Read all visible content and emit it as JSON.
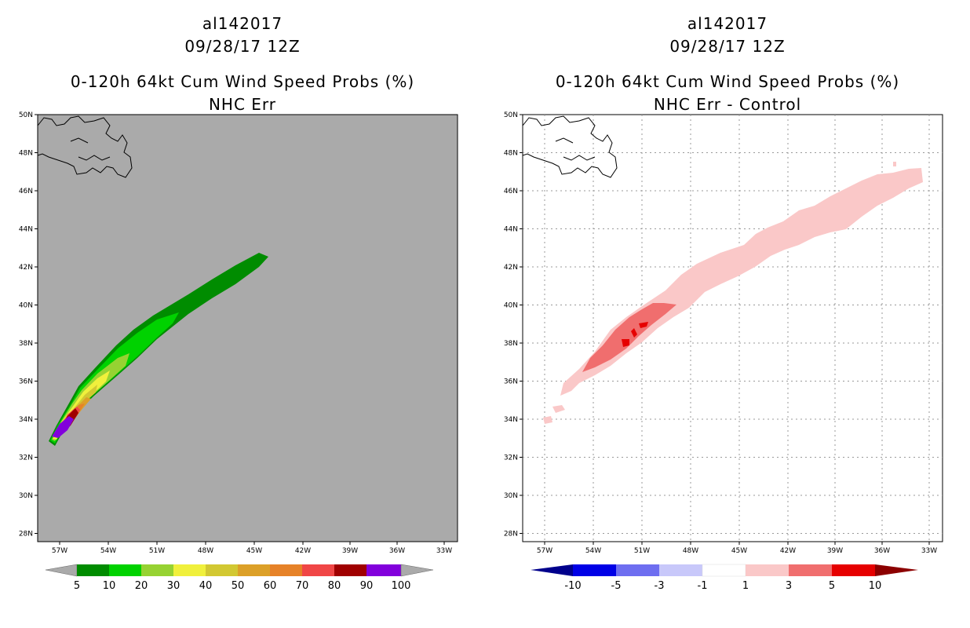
{
  "panels": [
    {
      "id": "left",
      "title_lines": [
        "al142017",
        "09/28/17 12Z",
        "0-120h 64kt Cum Wind Speed Probs (%)",
        "NHC Err"
      ],
      "lat_labels": [
        "50N",
        "48N",
        "46N",
        "44N",
        "42N",
        "40N",
        "38N",
        "36N",
        "34N",
        "32N",
        "30N",
        "28N"
      ],
      "lon_labels": [
        "57W",
        "54W",
        "51W",
        "48W",
        "45W",
        "42W",
        "39W",
        "36W",
        "33W"
      ],
      "gridlines": false,
      "colorbar": {
        "labels": [
          "5",
          "10",
          "20",
          "30",
          "40",
          "50",
          "60",
          "70",
          "80",
          "90",
          "100"
        ],
        "colors": [
          "#008c00",
          "#00d200",
          "#96d232",
          "#f0f03c",
          "#d2c832",
          "#dca028",
          "#e68228",
          "#f04646",
          "#a00000",
          "#8200dc"
        ],
        "under_color": "#aaaaaa",
        "over_color": "#aaaaaa"
      }
    },
    {
      "id": "right",
      "title_lines": [
        "al142017",
        "09/28/17 12Z",
        "0-120h 64kt Cum Wind Speed Probs (%)",
        "NHC Err - Control"
      ],
      "lat_labels": [
        "50N",
        "48N",
        "46N",
        "44N",
        "42N",
        "40N",
        "38N",
        "36N",
        "34N",
        "32N",
        "30N",
        "28N"
      ],
      "lon_labels": [
        "57W",
        "54W",
        "51W",
        "48W",
        "45W",
        "42W",
        "39W",
        "36W",
        "33W"
      ],
      "gridlines": true,
      "colorbar": {
        "labels": [
          "-10",
          "-5",
          "-3",
          "-1",
          "1",
          "3",
          "5",
          "10"
        ],
        "colors": [
          "#0000e6",
          "#6e6ef0",
          "#c8c8fa",
          "#ffffff",
          "#fac8c8",
          "#f06e6e",
          "#e60000"
        ],
        "under_color": "#00008c",
        "over_color": "#8c0000"
      }
    }
  ]
}
